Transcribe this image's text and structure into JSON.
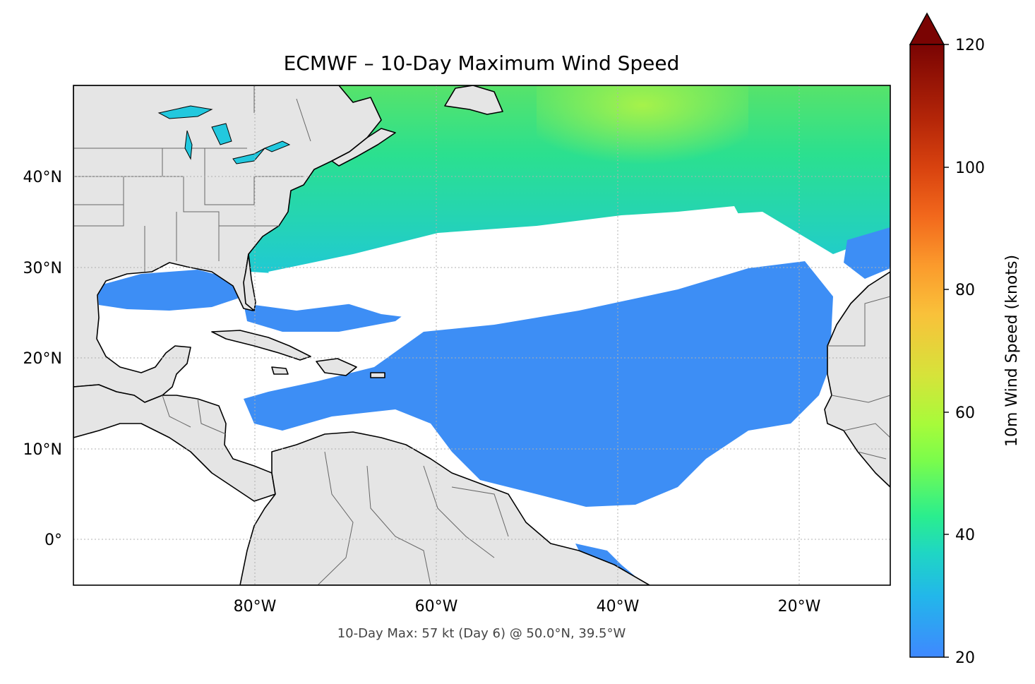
{
  "title": "ECMWF – 10-Day Maximum Wind Speed",
  "footer_note": "10-Day Max: 57 kt (Day 6) @ 50.0°N, 39.5°W",
  "map": {
    "lon_range": [
      -100,
      -10
    ],
    "lat_range": [
      -5,
      50
    ],
    "x_ticks": [
      {
        "value": -80,
        "label": "80°W"
      },
      {
        "value": -60,
        "label": "60°W"
      },
      {
        "value": -40,
        "label": "40°W"
      },
      {
        "value": -20,
        "label": "20°W"
      }
    ],
    "y_ticks": [
      {
        "value": 40,
        "label": "40°N"
      },
      {
        "value": 30,
        "label": "30°N"
      },
      {
        "value": 20,
        "label": "20°N"
      },
      {
        "value": 10,
        "label": "10°N"
      },
      {
        "value": 0,
        "label": "0°"
      }
    ],
    "gridlines": true,
    "land_color": "#e5e5e5",
    "coast_color": "#000000",
    "border_color": "#666666"
  },
  "colorbar": {
    "label": "10m Wind Speed (knots)",
    "range": [
      20,
      120
    ],
    "extend": "max",
    "ticks": [
      {
        "value": 20,
        "label": "20"
      },
      {
        "value": 40,
        "label": "40"
      },
      {
        "value": 60,
        "label": "60"
      },
      {
        "value": 80,
        "label": "80"
      },
      {
        "value": 100,
        "label": "100"
      },
      {
        "value": 120,
        "label": "120"
      }
    ],
    "colors": [
      "#3f88ff",
      "#22b7ea",
      "#1fd6c4",
      "#2aee8e",
      "#7afc4c",
      "#a7fb3a",
      "#d6e33a",
      "#f9c13a",
      "#fb9a2c",
      "#f2681c",
      "#d8420f",
      "#b32508",
      "#8c0f03",
      "#7a0403"
    ]
  },
  "max_wind": {
    "speed_kt": 57,
    "day": 6,
    "lat": 50.0,
    "lon": -39.5
  }
}
